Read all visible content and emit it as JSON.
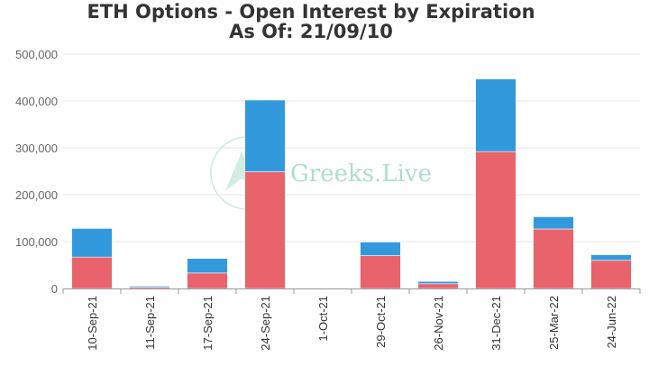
{
  "chart_data": {
    "type": "bar",
    "stacked": true,
    "title": "ETH Options - Open Interest by Expiration",
    "subtitle": "As Of: 21/09/10",
    "categories": [
      "10-Sep-21",
      "11-Sep-21",
      "17-Sep-21",
      "24-Sep-21",
      "1-Oct-21",
      "29-Oct-21",
      "26-Nov-21",
      "31-Dec-21",
      "25-Mar-22",
      "24-Jun-22"
    ],
    "series": [
      {
        "values": [
          67000,
          2500,
          33000,
          249000,
          500,
          70000,
          10000,
          292000,
          127000,
          60000
        ],
        "color": "#e8636b"
      },
      {
        "values": [
          61000,
          2500,
          31000,
          153000,
          500,
          29000,
          5000,
          155000,
          26000,
          12000
        ],
        "color": "#3399dd"
      }
    ],
    "ylim": [
      0,
      500000
    ],
    "yticks": [
      0,
      100000,
      200000,
      300000,
      400000,
      500000
    ],
    "ytick_labels": [
      "0",
      "100,000",
      "200,000",
      "300,000",
      "400,000",
      "500,000"
    ],
    "grid": true,
    "xlabel": "",
    "ylabel": ""
  },
  "watermark": {
    "text": "Greeks.Live",
    "color": "#9fd9c4"
  }
}
